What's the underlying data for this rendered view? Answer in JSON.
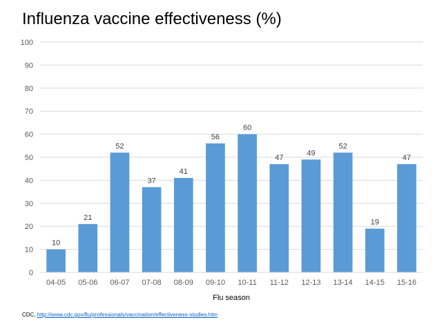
{
  "chart_data": {
    "type": "bar",
    "title": "Influenza vaccine effectiveness (%)",
    "xlabel": "Flu season",
    "ylabel": "",
    "ylim": [
      0,
      100
    ],
    "yticks": [
      0,
      10,
      20,
      30,
      40,
      50,
      60,
      70,
      80,
      90,
      100
    ],
    "grid": true,
    "categories": [
      "04-05",
      "05-06",
      "06-07",
      "07-08",
      "08-09",
      "09-10",
      "10-11",
      "11-12",
      "12-13",
      "13-14",
      "14-15",
      "15-16"
    ],
    "values": [
      10,
      21,
      52,
      37,
      41,
      56,
      60,
      47,
      49,
      52,
      19,
      47
    ],
    "data_labels": true,
    "bar_color": "#5b9bd5",
    "grid_color": "#d9d9d9"
  },
  "source": {
    "prefix": "CDC, ",
    "link_text": "http://www.cdc.gov/flu/professionals/vaccination/effectiveness-studies.htm"
  }
}
